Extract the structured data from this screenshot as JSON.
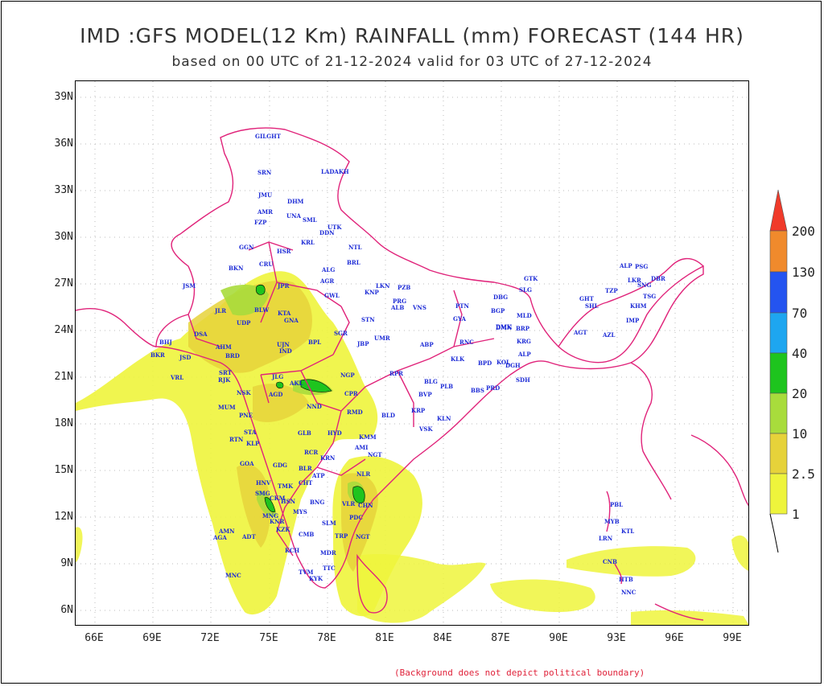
{
  "title": "IMD :GFS MODEL(12 Km) RAINFALL (mm) FORECAST (144 HR)",
  "subtitle": "based on 00 UTC of 21-12-2024 valid for 03 UTC of 27-12-2024",
  "note": "(Background does not depict political boundary)",
  "lat_ticks": [
    "39N",
    "36N",
    "33N",
    "30N",
    "27N",
    "24N",
    "21N",
    "18N",
    "15N",
    "12N",
    "9N",
    "6N"
  ],
  "lon_ticks": [
    "66E",
    "69E",
    "72E",
    "75E",
    "78E",
    "81E",
    "84E",
    "87E",
    "90E",
    "93E",
    "96E",
    "99E"
  ],
  "extent": {
    "lon_min": 65,
    "lon_max": 99.8,
    "lat_min": 4.8,
    "lat_max": 40
  },
  "colorbar": {
    "labels": [
      "200",
      "130",
      "70",
      "40",
      "20",
      "10",
      "2.5",
      "1"
    ],
    "colors": [
      "#f03a2a",
      "#f08a2c",
      "#2454f0",
      "#1ea6f0",
      "#1ec41e",
      "#a8dc3c",
      "#e6d23a",
      "#eef43c"
    ]
  },
  "colors": {
    "border": "#e0237a",
    "plot_bg": "#ffffff",
    "station_text": "#1d2bd6"
  },
  "stations": [
    {
      "t": "GILGHT"
    },
    {
      "t": "SRN"
    },
    {
      "t": "LADAKH"
    },
    {
      "t": "JMU"
    },
    {
      "t": "DHM"
    },
    {
      "t": "AMR"
    },
    {
      "t": "UNA"
    },
    {
      "t": "SML"
    },
    {
      "t": "FZP"
    },
    {
      "t": "UTK"
    },
    {
      "t": "DDN"
    },
    {
      "t": "GGN"
    },
    {
      "t": "KRL"
    },
    {
      "t": "HSR"
    },
    {
      "t": "NTL"
    },
    {
      "t": "BRL"
    },
    {
      "t": "BKN"
    },
    {
      "t": "CRU"
    },
    {
      "t": "ALG"
    },
    {
      "t": "JSM"
    },
    {
      "t": "JPR"
    },
    {
      "t": "AGR"
    },
    {
      "t": "LKN"
    },
    {
      "t": "PZB"
    },
    {
      "t": "KNP"
    },
    {
      "t": "GWL"
    },
    {
      "t": "PRG"
    },
    {
      "t": "ALB"
    },
    {
      "t": "VNS"
    },
    {
      "t": "PTN"
    },
    {
      "t": "GYA"
    },
    {
      "t": "DBG"
    },
    {
      "t": "JLR"
    },
    {
      "t": "BLW"
    },
    {
      "t": "KTA"
    },
    {
      "t": "UDP"
    },
    {
      "t": "GNA"
    },
    {
      "t": "SGR"
    },
    {
      "t": "STN"
    },
    {
      "t": "BHJ"
    },
    {
      "t": "DSA"
    },
    {
      "t": "AHM"
    },
    {
      "t": "UJN"
    },
    {
      "t": "IND"
    },
    {
      "t": "BPL"
    },
    {
      "t": "JBP"
    },
    {
      "t": "UMR"
    },
    {
      "t": "RNC"
    },
    {
      "t": "BKR"
    },
    {
      "t": "JSD"
    },
    {
      "t": "BRD"
    },
    {
      "t": "DMN"
    },
    {
      "t": "ABP"
    },
    {
      "t": "KLK"
    },
    {
      "t": "BPD"
    },
    {
      "t": "KOL"
    },
    {
      "t": "VRL"
    },
    {
      "t": "RJK"
    },
    {
      "t": "SRT"
    },
    {
      "t": "JLG"
    },
    {
      "t": "AKL"
    },
    {
      "t": "NGP"
    },
    {
      "t": "RPR"
    },
    {
      "t": "BLG"
    },
    {
      "t": "PLB"
    },
    {
      "t": "BBS"
    },
    {
      "t": "PRD"
    },
    {
      "t": "NSK"
    },
    {
      "t": "AGD"
    },
    {
      "t": "CPR"
    },
    {
      "t": "BVP"
    },
    {
      "t": "KRP"
    },
    {
      "t": "MUM"
    },
    {
      "t": "PNE"
    },
    {
      "t": "NND"
    },
    {
      "t": "RMD"
    },
    {
      "t": "BLD"
    },
    {
      "t": "KLN"
    },
    {
      "t": "STA"
    },
    {
      "t": "GLB"
    },
    {
      "t": "HYD"
    },
    {
      "t": "KMM"
    },
    {
      "t": "VSK"
    },
    {
      "t": "RTN"
    },
    {
      "t": "KLP"
    },
    {
      "t": "RCR"
    },
    {
      "t": "KRN"
    },
    {
      "t": "AMI"
    },
    {
      "t": "NGT"
    },
    {
      "t": "GOA"
    },
    {
      "t": "GDG"
    },
    {
      "t": "BLR"
    },
    {
      "t": "ATP"
    },
    {
      "t": "CHT"
    },
    {
      "t": "NLR"
    },
    {
      "t": "HNV"
    },
    {
      "t": "SMG"
    },
    {
      "t": "CKM"
    },
    {
      "t": "TMK"
    },
    {
      "t": "HSN"
    },
    {
      "t": "BNG"
    },
    {
      "t": "CHN"
    },
    {
      "t": "VLR"
    },
    {
      "t": "MNG"
    },
    {
      "t": "MYS"
    },
    {
      "t": "KNR"
    },
    {
      "t": "SLM"
    },
    {
      "t": "PDC"
    },
    {
      "t": "KZK"
    },
    {
      "t": "CMB"
    },
    {
      "t": "TRP"
    },
    {
      "t": "NGT"
    },
    {
      "t": "AMN"
    },
    {
      "t": "AGA"
    },
    {
      "t": "ADT"
    },
    {
      "t": "KCH"
    },
    {
      "t": "MDR"
    },
    {
      "t": "TVM"
    },
    {
      "t": "TTC"
    },
    {
      "t": "KYK"
    },
    {
      "t": "MNC"
    },
    {
      "t": "GTK"
    },
    {
      "t": "SLG"
    },
    {
      "t": "BGP"
    },
    {
      "t": "MLD"
    },
    {
      "t": "DMK"
    },
    {
      "t": "BRP"
    },
    {
      "t": "KRG"
    },
    {
      "t": "ALP"
    },
    {
      "t": "DGH"
    },
    {
      "t": "SDH"
    },
    {
      "t": "GHT"
    },
    {
      "t": "SHL"
    },
    {
      "t": "TZP"
    },
    {
      "t": "KHM"
    },
    {
      "t": "AGT"
    },
    {
      "t": "AZL"
    },
    {
      "t": "IMP"
    },
    {
      "t": "TSG"
    },
    {
      "t": "DBR"
    },
    {
      "t": "SNG"
    },
    {
      "t": "ALP"
    },
    {
      "t": "PSG"
    },
    {
      "t": "LKR"
    },
    {
      "t": "PBL"
    },
    {
      "t": "MYB"
    },
    {
      "t": "LRN"
    },
    {
      "t": "CNB"
    },
    {
      "t": "HTB"
    },
    {
      "t": "NNC"
    },
    {
      "t": "KTL"
    }
  ]
}
